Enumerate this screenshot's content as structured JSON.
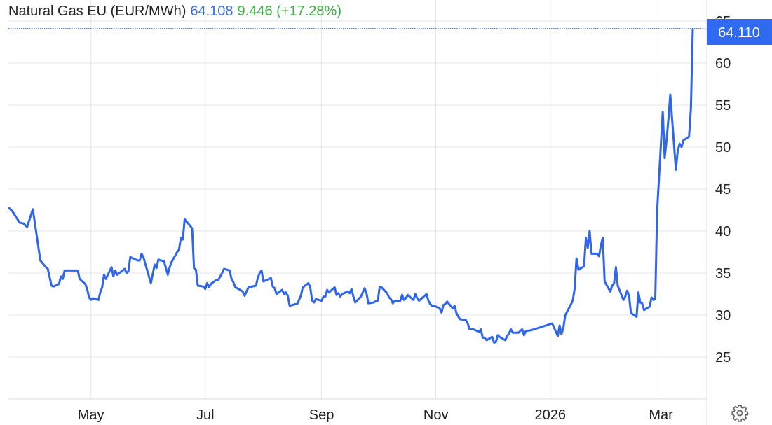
{
  "header": {
    "instrument": "Natural Gas EU (EUR/MWh)",
    "price": "64.108",
    "change": "9.446 (+17.28%)"
  },
  "last_price_label": "64.110",
  "colors": {
    "line": "#2f66eb",
    "price_text": "#3a6ee8",
    "change_text": "#3cb043",
    "label_bg": "#2f6bf0",
    "grid": "#e6e6e6"
  },
  "settings_icon": "gear-icon",
  "chart_data": {
    "type": "line",
    "title": "Natural Gas EU (EUR/MWh)",
    "xlabel": "",
    "ylabel": "",
    "ylim": [
      20,
      65.5
    ],
    "y_axis_position": "right",
    "grid": true,
    "y_ticks": [
      "25",
      "30",
      "35",
      "40",
      "45",
      "50",
      "55",
      "60",
      "65"
    ],
    "x_ticks": [
      {
        "date": "2025-05-01",
        "label": "May"
      },
      {
        "date": "2025-07-01",
        "label": "Jul"
      },
      {
        "date": "2025-09-01",
        "label": "Sep"
      },
      {
        "date": "2025-11-01",
        "label": "Nov"
      },
      {
        "date": "2026-01-01",
        "label": "2026"
      },
      {
        "date": "2026-03-01",
        "label": "Mar"
      }
    ],
    "last_value": 64.11,
    "points": [
      [
        "2025-03-18",
        42.8
      ],
      [
        "2025-03-20",
        42.4
      ],
      [
        "2025-03-24",
        41.0
      ],
      [
        "2025-03-26",
        40.9
      ],
      [
        "2025-03-28",
        40.5
      ],
      [
        "2025-03-31",
        42.6
      ],
      [
        "2025-04-02",
        39.6
      ],
      [
        "2025-04-04",
        36.5
      ],
      [
        "2025-04-07",
        35.7
      ],
      [
        "2025-04-08",
        35.5
      ],
      [
        "2025-04-10",
        33.5
      ],
      [
        "2025-04-11",
        33.4
      ],
      [
        "2025-04-14",
        33.7
      ],
      [
        "2025-04-15",
        34.6
      ],
      [
        "2025-04-16",
        34.3
      ],
      [
        "2025-04-17",
        35.3
      ],
      [
        "2025-04-22",
        35.3
      ],
      [
        "2025-04-24",
        35.3
      ],
      [
        "2025-04-25",
        34.3
      ],
      [
        "2025-04-28",
        33.7
      ],
      [
        "2025-04-29",
        33.1
      ],
      [
        "2025-04-30",
        32.1
      ],
      [
        "2025-05-01",
        31.8
      ],
      [
        "2025-05-02",
        32.0
      ],
      [
        "2025-05-05",
        31.8
      ],
      [
        "2025-05-06",
        32.7
      ],
      [
        "2025-05-07",
        33.3
      ],
      [
        "2025-05-08",
        34.8
      ],
      [
        "2025-05-09",
        34.3
      ],
      [
        "2025-05-12",
        35.7
      ],
      [
        "2025-05-13",
        34.6
      ],
      [
        "2025-05-14",
        35.3
      ],
      [
        "2025-05-15",
        34.8
      ],
      [
        "2025-05-19",
        35.5
      ],
      [
        "2025-05-20",
        35.0
      ],
      [
        "2025-05-21",
        35.2
      ],
      [
        "2025-05-22",
        36.9
      ],
      [
        "2025-05-26",
        36.5
      ],
      [
        "2025-05-27",
        36.5
      ],
      [
        "2025-05-28",
        37.3
      ],
      [
        "2025-05-29",
        36.9
      ],
      [
        "2025-05-30",
        36.1
      ],
      [
        "2025-06-02",
        33.8
      ],
      [
        "2025-06-04",
        36.0
      ],
      [
        "2025-06-05",
        35.6
      ],
      [
        "2025-06-06",
        36.6
      ],
      [
        "2025-06-09",
        36.4
      ],
      [
        "2025-06-11",
        34.8
      ],
      [
        "2025-06-12",
        35.7
      ],
      [
        "2025-06-13",
        36.3
      ],
      [
        "2025-06-16",
        37.5
      ],
      [
        "2025-06-17",
        37.8
      ],
      [
        "2025-06-18",
        39.2
      ],
      [
        "2025-06-19",
        39.0
      ],
      [
        "2025-06-20",
        41.4
      ],
      [
        "2025-06-23",
        40.6
      ],
      [
        "2025-06-24",
        40.3
      ],
      [
        "2025-06-25",
        35.6
      ],
      [
        "2025-06-26",
        35.4
      ],
      [
        "2025-06-27",
        33.5
      ],
      [
        "2025-06-30",
        33.4
      ],
      [
        "2025-07-01",
        33.1
      ],
      [
        "2025-07-02",
        33.8
      ],
      [
        "2025-07-03",
        33.3
      ],
      [
        "2025-07-04",
        33.7
      ],
      [
        "2025-07-07",
        34.2
      ],
      [
        "2025-07-08",
        34.2
      ],
      [
        "2025-07-10",
        35.0
      ],
      [
        "2025-07-11",
        35.5
      ],
      [
        "2025-07-14",
        35.3
      ],
      [
        "2025-07-15",
        34.3
      ],
      [
        "2025-07-16",
        33.9
      ],
      [
        "2025-07-17",
        33.3
      ],
      [
        "2025-07-18",
        33.2
      ],
      [
        "2025-07-21",
        32.8
      ],
      [
        "2025-07-22",
        32.3
      ],
      [
        "2025-07-24",
        33.3
      ],
      [
        "2025-07-28",
        33.5
      ],
      [
        "2025-07-29",
        34.4
      ],
      [
        "2025-07-30",
        35.0
      ],
      [
        "2025-07-31",
        35.3
      ],
      [
        "2025-08-01",
        34.0
      ],
      [
        "2025-08-04",
        34.3
      ],
      [
        "2025-08-05",
        34.4
      ],
      [
        "2025-08-06",
        33.4
      ],
      [
        "2025-08-07",
        33.2
      ],
      [
        "2025-08-08",
        32.5
      ],
      [
        "2025-08-11",
        33.0
      ],
      [
        "2025-08-12",
        32.5
      ],
      [
        "2025-08-13",
        32.7
      ],
      [
        "2025-08-14",
        32.3
      ],
      [
        "2025-08-15",
        31.1
      ],
      [
        "2025-08-18",
        31.3
      ],
      [
        "2025-08-19",
        31.3
      ],
      [
        "2025-08-21",
        32.3
      ],
      [
        "2025-08-22",
        33.3
      ],
      [
        "2025-08-25",
        33.8
      ],
      [
        "2025-08-26",
        33.3
      ],
      [
        "2025-08-27",
        31.7
      ],
      [
        "2025-08-28",
        31.5
      ],
      [
        "2025-08-29",
        31.9
      ],
      [
        "2025-09-01",
        31.7
      ],
      [
        "2025-09-02",
        32.2
      ],
      [
        "2025-09-03",
        32.2
      ],
      [
        "2025-09-04",
        33.0
      ],
      [
        "2025-09-05",
        32.7
      ],
      [
        "2025-09-08",
        33.3
      ],
      [
        "2025-09-09",
        32.4
      ],
      [
        "2025-09-10",
        32.6
      ],
      [
        "2025-09-11",
        32.2
      ],
      [
        "2025-09-12",
        32.5
      ],
      [
        "2025-09-15",
        32.8
      ],
      [
        "2025-09-16",
        32.6
      ],
      [
        "2025-09-17",
        33.1
      ],
      [
        "2025-09-18",
        32.2
      ],
      [
        "2025-09-19",
        31.5
      ],
      [
        "2025-09-22",
        32.2
      ],
      [
        "2025-09-23",
        32.7
      ],
      [
        "2025-09-24",
        33.2
      ],
      [
        "2025-09-25",
        32.6
      ],
      [
        "2025-09-26",
        31.4
      ],
      [
        "2025-09-29",
        31.5
      ],
      [
        "2025-09-30",
        31.7
      ],
      [
        "2025-10-01",
        31.7
      ],
      [
        "2025-10-02",
        33.3
      ],
      [
        "2025-10-03",
        33.3
      ],
      [
        "2025-10-06",
        32.6
      ],
      [
        "2025-10-07",
        32.1
      ],
      [
        "2025-10-08",
        31.9
      ],
      [
        "2025-10-09",
        31.4
      ],
      [
        "2025-10-10",
        31.7
      ],
      [
        "2025-10-13",
        31.7
      ],
      [
        "2025-10-14",
        32.4
      ],
      [
        "2025-10-15",
        31.8
      ],
      [
        "2025-10-16",
        32.0
      ],
      [
        "2025-10-17",
        32.4
      ],
      [
        "2025-10-20",
        31.8
      ],
      [
        "2025-10-21",
        32.5
      ],
      [
        "2025-10-22",
        32.0
      ],
      [
        "2025-10-23",
        31.7
      ],
      [
        "2025-10-27",
        32.5
      ],
      [
        "2025-10-28",
        31.7
      ],
      [
        "2025-10-29",
        31.3
      ],
      [
        "2025-10-30",
        31.1
      ],
      [
        "2025-10-31",
        31.1
      ],
      [
        "2025-11-03",
        30.8
      ],
      [
        "2025-11-04",
        30.3
      ],
      [
        "2025-11-05",
        31.2
      ],
      [
        "2025-11-06",
        31.3
      ],
      [
        "2025-11-07",
        31.6
      ],
      [
        "2025-11-10",
        30.8
      ],
      [
        "2025-11-11",
        31.1
      ],
      [
        "2025-11-12",
        30.2
      ],
      [
        "2025-11-13",
        29.8
      ],
      [
        "2025-11-14",
        29.5
      ],
      [
        "2025-11-17",
        29.4
      ],
      [
        "2025-11-18",
        29.0
      ],
      [
        "2025-11-19",
        28.3
      ],
      [
        "2025-11-21",
        28.3
      ],
      [
        "2025-11-24",
        28.0
      ],
      [
        "2025-11-25",
        28.3
      ],
      [
        "2025-11-26",
        27.3
      ],
      [
        "2025-11-27",
        27.3
      ],
      [
        "2025-11-28",
        27.0
      ],
      [
        "2025-12-01",
        27.4
      ],
      [
        "2025-12-02",
        26.7
      ],
      [
        "2025-12-03",
        26.8
      ],
      [
        "2025-12-04",
        27.6
      ],
      [
        "2025-12-05",
        27.4
      ],
      [
        "2025-12-08",
        27.0
      ],
      [
        "2025-12-09",
        27.5
      ],
      [
        "2025-12-10",
        27.8
      ],
      [
        "2025-12-11",
        28.3
      ],
      [
        "2025-12-12",
        27.9
      ],
      [
        "2025-12-15",
        27.9
      ],
      [
        "2025-12-16",
        28.1
      ],
      [
        "2025-12-17",
        28.3
      ],
      [
        "2025-12-18",
        27.6
      ],
      [
        "2025-12-19",
        28.1
      ],
      [
        "2025-12-22",
        28.2
      ],
      [
        "2026-01-02",
        29.0
      ],
      [
        "2026-01-05",
        27.5
      ],
      [
        "2026-01-06",
        28.75
      ],
      [
        "2026-01-07",
        27.7
      ],
      [
        "2026-01-08",
        28.5
      ],
      [
        "2026-01-09",
        30.0
      ],
      [
        "2026-01-12",
        31.25
      ],
      [
        "2026-01-13",
        31.75
      ],
      [
        "2026-01-14",
        33.1
      ],
      [
        "2026-01-15",
        36.75
      ],
      [
        "2026-01-16",
        35.4
      ],
      [
        "2026-01-19",
        35.8
      ],
      [
        "2026-01-20",
        39.2
      ],
      [
        "2026-01-21",
        38.0
      ],
      [
        "2026-01-22",
        40.0
      ],
      [
        "2026-01-23",
        37.3
      ],
      [
        "2026-01-26",
        37.3
      ],
      [
        "2026-01-27",
        37.0
      ],
      [
        "2026-01-28",
        38.3
      ],
      [
        "2026-01-29",
        39.2
      ],
      [
        "2026-01-30",
        34.0
      ],
      [
        "2026-02-02",
        32.8
      ],
      [
        "2026-02-03",
        33.5
      ],
      [
        "2026-02-04",
        33.75
      ],
      [
        "2026-02-05",
        35.7
      ],
      [
        "2026-02-06",
        33.5
      ],
      [
        "2026-02-09",
        31.8
      ],
      [
        "2026-02-10",
        32.2
      ],
      [
        "2026-02-11",
        32.9
      ],
      [
        "2026-02-12",
        32.3
      ],
      [
        "2026-02-13",
        30.25
      ],
      [
        "2026-02-16",
        29.8
      ],
      [
        "2026-02-17",
        32.7
      ],
      [
        "2026-02-18",
        31.5
      ],
      [
        "2026-02-19",
        31.4
      ],
      [
        "2026-02-20",
        30.6
      ],
      [
        "2026-02-23",
        31.0
      ],
      [
        "2026-02-24",
        32.1
      ],
      [
        "2026-02-25",
        31.8
      ],
      [
        "2026-02-26",
        31.9
      ],
      [
        "2026-02-27",
        42.5
      ],
      [
        "2026-03-02",
        54.2
      ],
      [
        "2026-03-03",
        48.7
      ],
      [
        "2026-03-04",
        50.8
      ],
      [
        "2026-03-05",
        53.3
      ],
      [
        "2026-03-06",
        56.25
      ],
      [
        "2026-03-09",
        47.3
      ],
      [
        "2026-03-10",
        49.6
      ],
      [
        "2026-03-11",
        50.4
      ],
      [
        "2026-03-12",
        50.0
      ],
      [
        "2026-03-13",
        50.8
      ],
      [
        "2026-03-16",
        51.25
      ],
      [
        "2026-03-17",
        54.6
      ],
      [
        "2026-03-18",
        64.11
      ]
    ]
  }
}
